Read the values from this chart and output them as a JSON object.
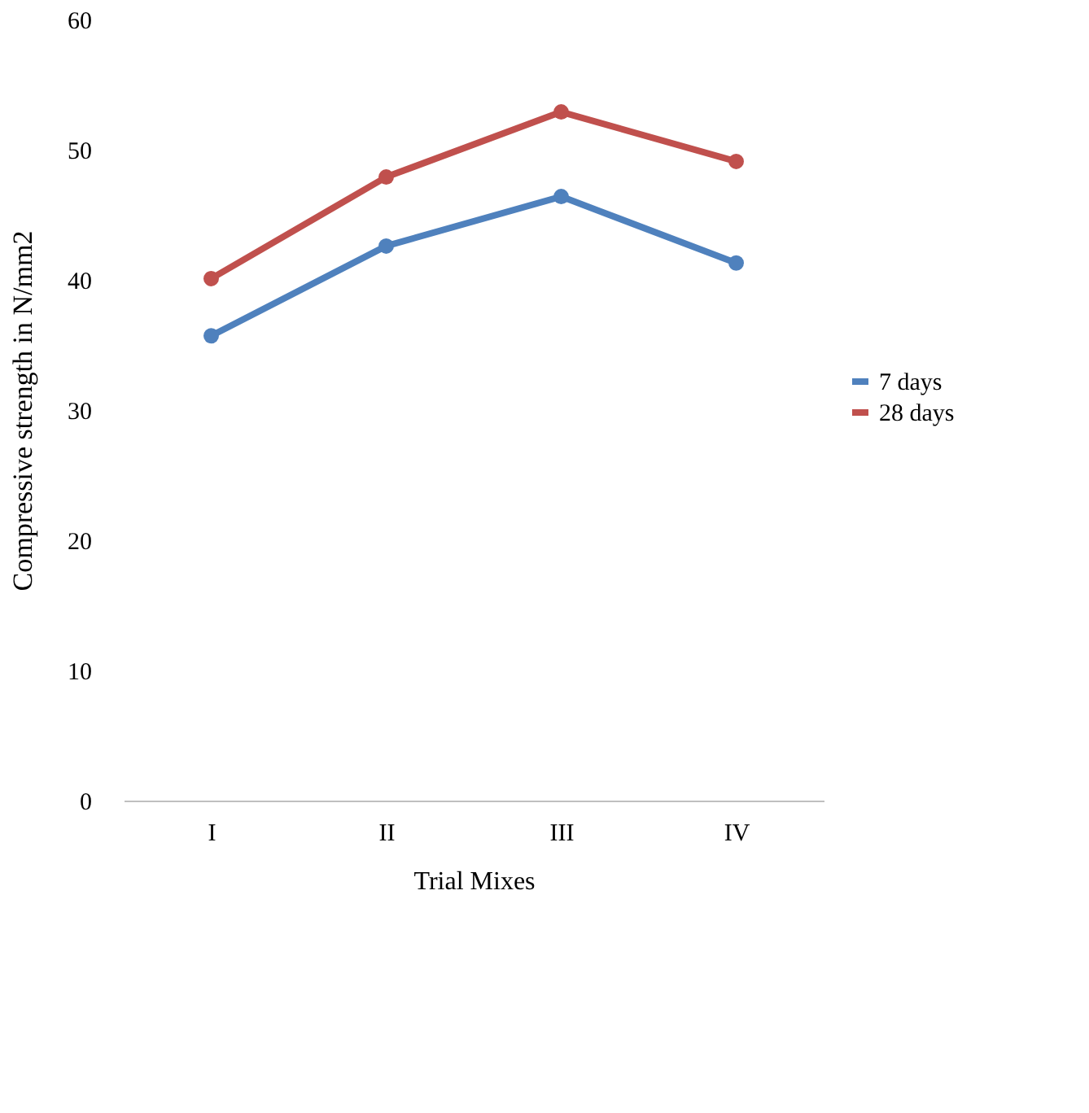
{
  "chart_data": {
    "type": "line",
    "xlabel": "Trial Mixes",
    "ylabel": "Compressive strength in N/mm2",
    "categories": [
      "I",
      "II",
      "III",
      "IV"
    ],
    "series": [
      {
        "name": "7 days",
        "color": "#4f81bd",
        "values": [
          35.7,
          42.6,
          46.4,
          41.3
        ]
      },
      {
        "name": "28 days",
        "color": "#c0504d",
        "values": [
          40.1,
          47.9,
          52.9,
          49.1
        ]
      }
    ],
    "ylim": [
      0,
      60
    ],
    "yticks": [
      0,
      10,
      20,
      30,
      40,
      50,
      60
    ],
    "grid": false,
    "legend": "right",
    "marker": "circle",
    "line_style": "solid"
  }
}
